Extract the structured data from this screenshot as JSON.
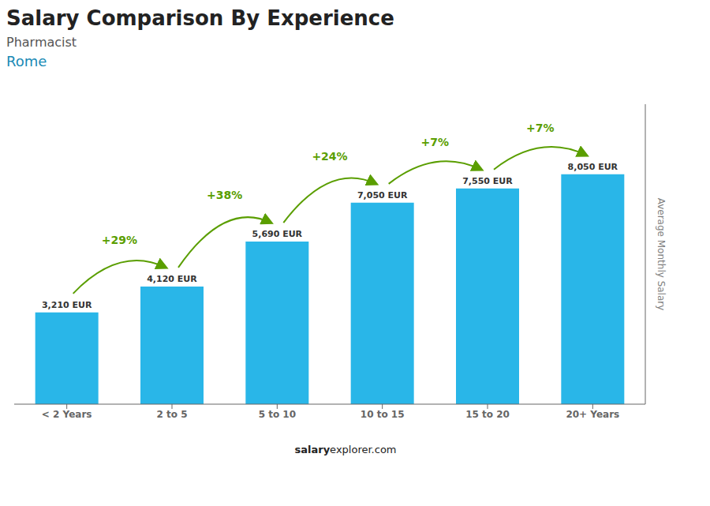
{
  "chart_data": {
    "type": "bar",
    "title": "Salary Comparison By Experience",
    "subtitle": [
      "Pharmacist",
      "Rome"
    ],
    "categories": [
      "< 2 Years",
      "2 to 5",
      "5 to 10",
      "10 to 15",
      "15 to 20",
      "20+ Years"
    ],
    "values": [
      3210,
      4120,
      5690,
      7050,
      7550,
      8050
    ],
    "value_labels": [
      "3,210 EUR",
      "4,120 EUR",
      "5,690 EUR",
      "7,050 EUR",
      "7,550 EUR",
      "8,050 EUR"
    ],
    "data_labels": true,
    "color": "#29b6e8",
    "ylabel": "Average Monthly Salary",
    "ylim": [
      0,
      10500
    ],
    "tick_labels": "x",
    "grid": false,
    "annotations": [
      "+29%",
      "+38%",
      "+24%",
      "+7%",
      "+7%"
    ],
    "watermark": [
      "salary",
      "explorer.com"
    ]
  }
}
